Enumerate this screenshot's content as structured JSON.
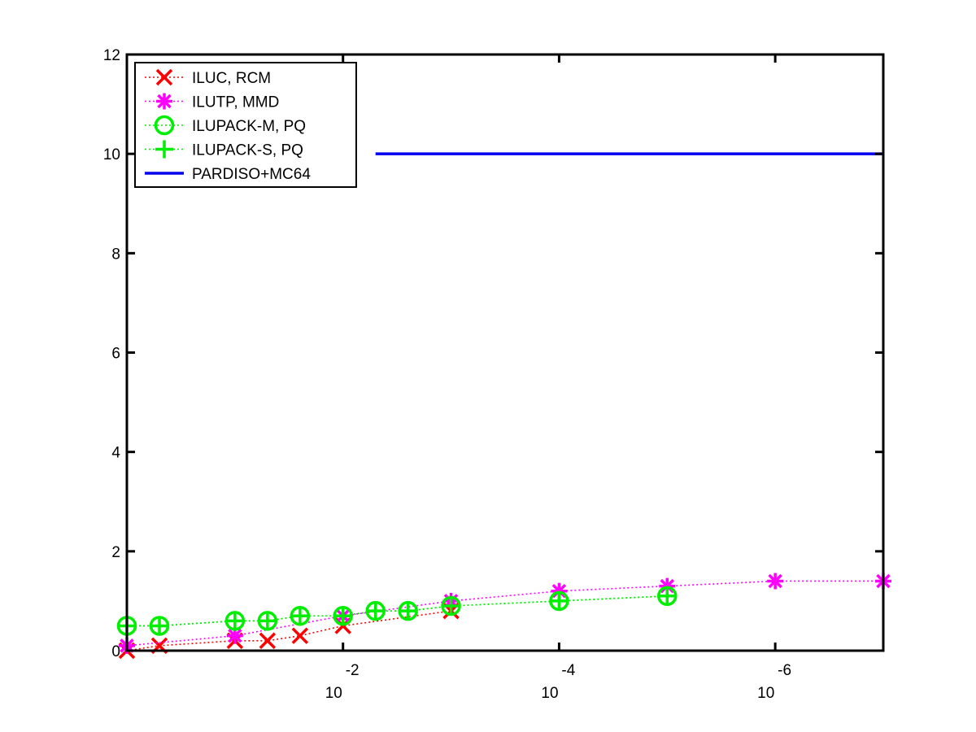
{
  "chart_data": {
    "type": "line",
    "x_scale": "log10-reversed",
    "xlim": [
      1,
      1e-07
    ],
    "ylim": [
      0,
      12
    ],
    "x_ticks": [
      {
        "value": 0.01,
        "base": "10",
        "exponent": "-2"
      },
      {
        "value": 0.0001,
        "base": "10",
        "exponent": "-4"
      },
      {
        "value": 1e-06,
        "base": "10",
        "exponent": "-6"
      }
    ],
    "y_ticks": [
      "0",
      "2",
      "4",
      "6",
      "8",
      "10",
      "12"
    ],
    "y_tick_values": [
      0,
      2,
      4,
      6,
      8,
      10,
      12
    ],
    "grid": false,
    "legend_position": "top-left",
    "series": [
      {
        "name": "ILUC, RCM",
        "color": "#ff0000",
        "marker": "x",
        "line": "dotted",
        "x": [
          1,
          0.5,
          0.1,
          0.05,
          0.025,
          0.01,
          0.001
        ],
        "y": [
          0,
          0.1,
          0.2,
          0.2,
          0.3,
          0.5,
          0.8
        ]
      },
      {
        "name": "ILUTP, MMD",
        "color": "#ff00ff",
        "marker": "asterisk",
        "line": "dotted",
        "x": [
          1,
          0.1,
          0.01,
          0.001,
          0.0001,
          1e-05,
          1e-06,
          1e-07
        ],
        "y": [
          0.1,
          0.3,
          0.7,
          1.0,
          1.2,
          1.3,
          1.4,
          1.4
        ]
      },
      {
        "name": "ILUPACK-M, PQ",
        "color": "#00ee00",
        "marker": "circle",
        "line": "dotted",
        "x": [
          1,
          0.5,
          0.1,
          0.05,
          0.025,
          0.01,
          0.005,
          0.0025,
          0.001,
          0.0001,
          1e-05
        ],
        "y": [
          0.5,
          0.5,
          0.6,
          0.6,
          0.7,
          0.7,
          0.8,
          0.8,
          0.9,
          1.0,
          1.1
        ]
      },
      {
        "name": "ILUPACK-S, PQ",
        "color": "#00ee00",
        "marker": "plus",
        "line": "dotted",
        "x": [
          1,
          0.5,
          0.1,
          0.05,
          0.025,
          0.01,
          0.005,
          0.0025,
          0.001,
          0.0001,
          1e-05
        ],
        "y": [
          0.5,
          0.5,
          0.6,
          0.6,
          0.7,
          0.7,
          0.8,
          0.8,
          0.9,
          1.0,
          1.1
        ]
      },
      {
        "name": "PARDISO+MC64",
        "color": "#0000ee",
        "marker": "none",
        "line": "solid",
        "x": [
          0.005,
          1e-07
        ],
        "y": [
          10,
          10
        ]
      }
    ]
  }
}
